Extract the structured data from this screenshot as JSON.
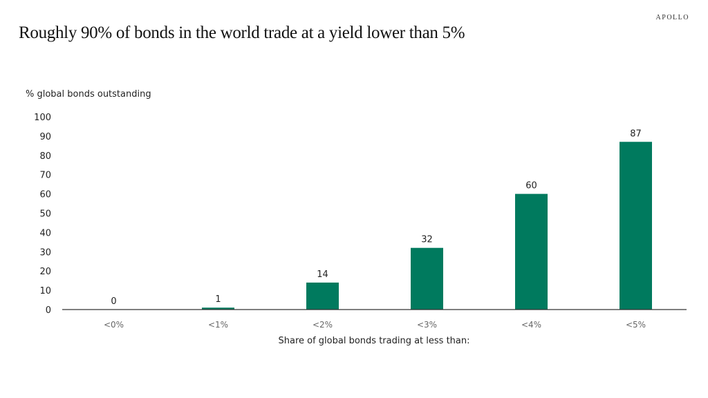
{
  "brand": "APOLLO",
  "title": "Roughly 90% of bonds in the world trade at a yield lower than 5%",
  "chart_data": {
    "type": "bar",
    "title": "Roughly 90% of bonds in the world trade at a yield lower than 5%",
    "ylabel": "% global bonds outstanding",
    "xlabel": "Share of global bonds trading at less than:",
    "categories": [
      "<0%",
      "<1%",
      "<2%",
      "<3%",
      "<4%",
      "<5%"
    ],
    "values": [
      0,
      1,
      14,
      32,
      60,
      87
    ],
    "data_labels": [
      "0",
      "1",
      "14",
      "32",
      "60",
      "87"
    ],
    "ylim": [
      0,
      100
    ],
    "yticks": [
      0,
      10,
      20,
      30,
      40,
      50,
      60,
      70,
      80,
      90,
      100
    ],
    "grid": false,
    "bar_color": "#007a5e"
  }
}
